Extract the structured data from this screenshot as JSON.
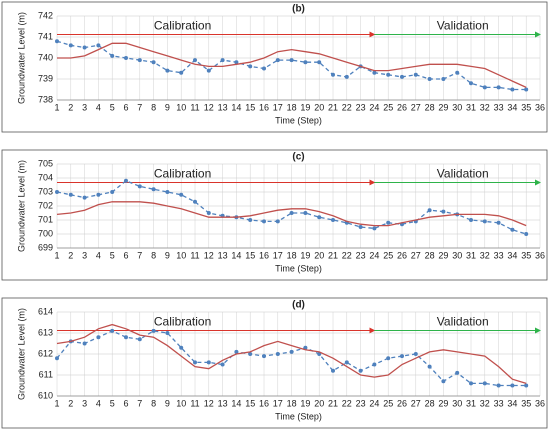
{
  "chart_data": [
    {
      "type": "line",
      "title": "(b)",
      "x_label": "Time (Step)",
      "y_label": "Groundwater Level (m)",
      "annotations": [
        "Calibration",
        "Validation"
      ],
      "arrow_colors": [
        "#d9342b",
        "#2eb34a"
      ],
      "x": [
        1,
        2,
        3,
        4,
        5,
        6,
        7,
        8,
        9,
        10,
        11,
        12,
        13,
        14,
        15,
        16,
        17,
        18,
        19,
        20,
        21,
        22,
        23,
        24,
        25,
        26,
        27,
        28,
        29,
        30,
        31,
        32,
        33,
        34,
        35
      ],
      "xlim": [
        1,
        36
      ],
      "xticks": [
        1,
        2,
        3,
        4,
        5,
        6,
        7,
        8,
        9,
        10,
        11,
        12,
        13,
        14,
        15,
        16,
        17,
        18,
        19,
        20,
        21,
        22,
        23,
        24,
        25,
        26,
        27,
        28,
        29,
        30,
        31,
        32,
        33,
        34,
        35,
        36
      ],
      "ylim": [
        738,
        742
      ],
      "yticks": [
        738,
        739,
        740,
        741,
        742
      ],
      "grid": true,
      "series": [
        {
          "color": "#4f81bd",
          "dashed": true,
          "markers": true,
          "values": [
            740.8,
            740.6,
            740.5,
            740.6,
            740.1,
            740.0,
            739.9,
            739.8,
            739.4,
            739.3,
            739.9,
            739.4,
            739.9,
            739.8,
            739.6,
            739.5,
            739.9,
            739.9,
            739.8,
            739.8,
            739.2,
            739.1,
            739.6,
            739.3,
            739.2,
            739.1,
            739.2,
            739.0,
            739.0,
            739.3,
            738.8,
            738.6,
            738.6,
            738.5,
            738.5
          ]
        },
        {
          "color": "#c0504d",
          "dashed": false,
          "markers": false,
          "values": [
            740.0,
            740.0,
            740.1,
            740.4,
            740.7,
            740.7,
            740.5,
            740.3,
            740.1,
            739.9,
            739.7,
            739.6,
            739.6,
            739.7,
            739.8,
            740.0,
            740.3,
            740.4,
            740.3,
            740.2,
            740.0,
            739.8,
            739.6,
            739.4,
            739.4,
            739.5,
            739.6,
            739.7,
            739.7,
            739.7,
            739.6,
            739.5,
            739.2,
            738.9,
            738.6
          ]
        }
      ]
    },
    {
      "type": "line",
      "title": "(c)",
      "x_label": "Time (Step)",
      "y_label": "Groundwater Level (m)",
      "annotations": [
        "Calibration",
        "Validation"
      ],
      "arrow_colors": [
        "#d9342b",
        "#2eb34a"
      ],
      "x": [
        1,
        2,
        3,
        4,
        5,
        6,
        7,
        8,
        9,
        10,
        11,
        12,
        13,
        14,
        15,
        16,
        17,
        18,
        19,
        20,
        21,
        22,
        23,
        24,
        25,
        26,
        27,
        28,
        29,
        30,
        31,
        32,
        33,
        34,
        35
      ],
      "xlim": [
        1,
        36
      ],
      "xticks": [
        1,
        2,
        3,
        4,
        5,
        6,
        7,
        8,
        9,
        10,
        11,
        12,
        13,
        14,
        15,
        16,
        17,
        18,
        19,
        20,
        21,
        22,
        23,
        24,
        25,
        26,
        27,
        28,
        29,
        30,
        31,
        32,
        33,
        34,
        35,
        36
      ],
      "ylim": [
        699,
        705
      ],
      "yticks": [
        699,
        700,
        701,
        702,
        703,
        704,
        705
      ],
      "grid": true,
      "series": [
        {
          "color": "#4f81bd",
          "dashed": true,
          "markers": true,
          "values": [
            703.0,
            702.8,
            702.6,
            702.8,
            703.0,
            703.8,
            703.4,
            703.2,
            703.0,
            702.8,
            702.3,
            701.5,
            701.3,
            701.2,
            701.0,
            700.9,
            700.9,
            701.5,
            701.5,
            701.2,
            701.0,
            700.8,
            700.5,
            700.4,
            700.8,
            700.7,
            700.9,
            701.7,
            701.6,
            701.4,
            701.0,
            700.9,
            700.8,
            700.3,
            700.0
          ]
        },
        {
          "color": "#c0504d",
          "dashed": false,
          "markers": false,
          "values": [
            701.4,
            701.5,
            701.7,
            702.1,
            702.3,
            702.3,
            702.3,
            702.2,
            702.0,
            701.8,
            701.5,
            701.2,
            701.2,
            701.2,
            701.3,
            701.5,
            701.7,
            701.8,
            701.8,
            701.6,
            701.3,
            700.9,
            700.7,
            700.6,
            700.6,
            700.8,
            701.0,
            701.2,
            701.3,
            701.4,
            701.4,
            701.4,
            701.3,
            701.0,
            700.6
          ]
        }
      ]
    },
    {
      "type": "line",
      "title": "(d)",
      "x_label": "Time (Step)",
      "y_label": "Groundwater Level (m)",
      "annotations": [
        "Calibration",
        "Validation"
      ],
      "arrow_colors": [
        "#d9342b",
        "#2eb34a"
      ],
      "x": [
        1,
        2,
        3,
        4,
        5,
        6,
        7,
        8,
        9,
        10,
        11,
        12,
        13,
        14,
        15,
        16,
        17,
        18,
        19,
        20,
        21,
        22,
        23,
        24,
        25,
        26,
        27,
        28,
        29,
        30,
        31,
        32,
        33,
        34,
        35
      ],
      "xlim": [
        1,
        36
      ],
      "xticks": [
        1,
        2,
        3,
        4,
        5,
        6,
        7,
        8,
        9,
        10,
        11,
        12,
        13,
        14,
        15,
        16,
        17,
        18,
        19,
        20,
        21,
        22,
        23,
        24,
        25,
        26,
        27,
        28,
        29,
        30,
        31,
        32,
        33,
        34,
        35,
        36
      ],
      "ylim": [
        610,
        614
      ],
      "yticks": [
        610,
        611,
        612,
        613,
        614
      ],
      "grid": true,
      "series": [
        {
          "color": "#4f81bd",
          "dashed": true,
          "markers": true,
          "values": [
            611.8,
            612.6,
            612.5,
            612.8,
            613.1,
            612.8,
            612.7,
            613.1,
            613.0,
            612.3,
            611.6,
            611.6,
            611.5,
            612.1,
            612.0,
            611.9,
            612.0,
            612.1,
            612.3,
            612.0,
            611.2,
            611.6,
            611.2,
            611.5,
            611.8,
            611.9,
            612.0,
            611.4,
            610.7,
            611.1,
            610.6,
            610.6,
            610.5,
            610.5,
            610.5
          ]
        },
        {
          "color": "#c0504d",
          "dashed": false,
          "markers": false,
          "values": [
            612.5,
            612.6,
            612.8,
            613.2,
            613.4,
            613.2,
            612.9,
            612.8,
            612.4,
            611.9,
            611.4,
            611.3,
            611.7,
            612.0,
            612.1,
            612.4,
            612.6,
            612.4,
            612.2,
            612.1,
            611.8,
            611.4,
            611.0,
            610.9,
            611.0,
            611.5,
            611.8,
            612.1,
            612.2,
            612.1,
            612.0,
            611.9,
            611.4,
            610.8,
            610.6
          ]
        }
      ]
    }
  ]
}
